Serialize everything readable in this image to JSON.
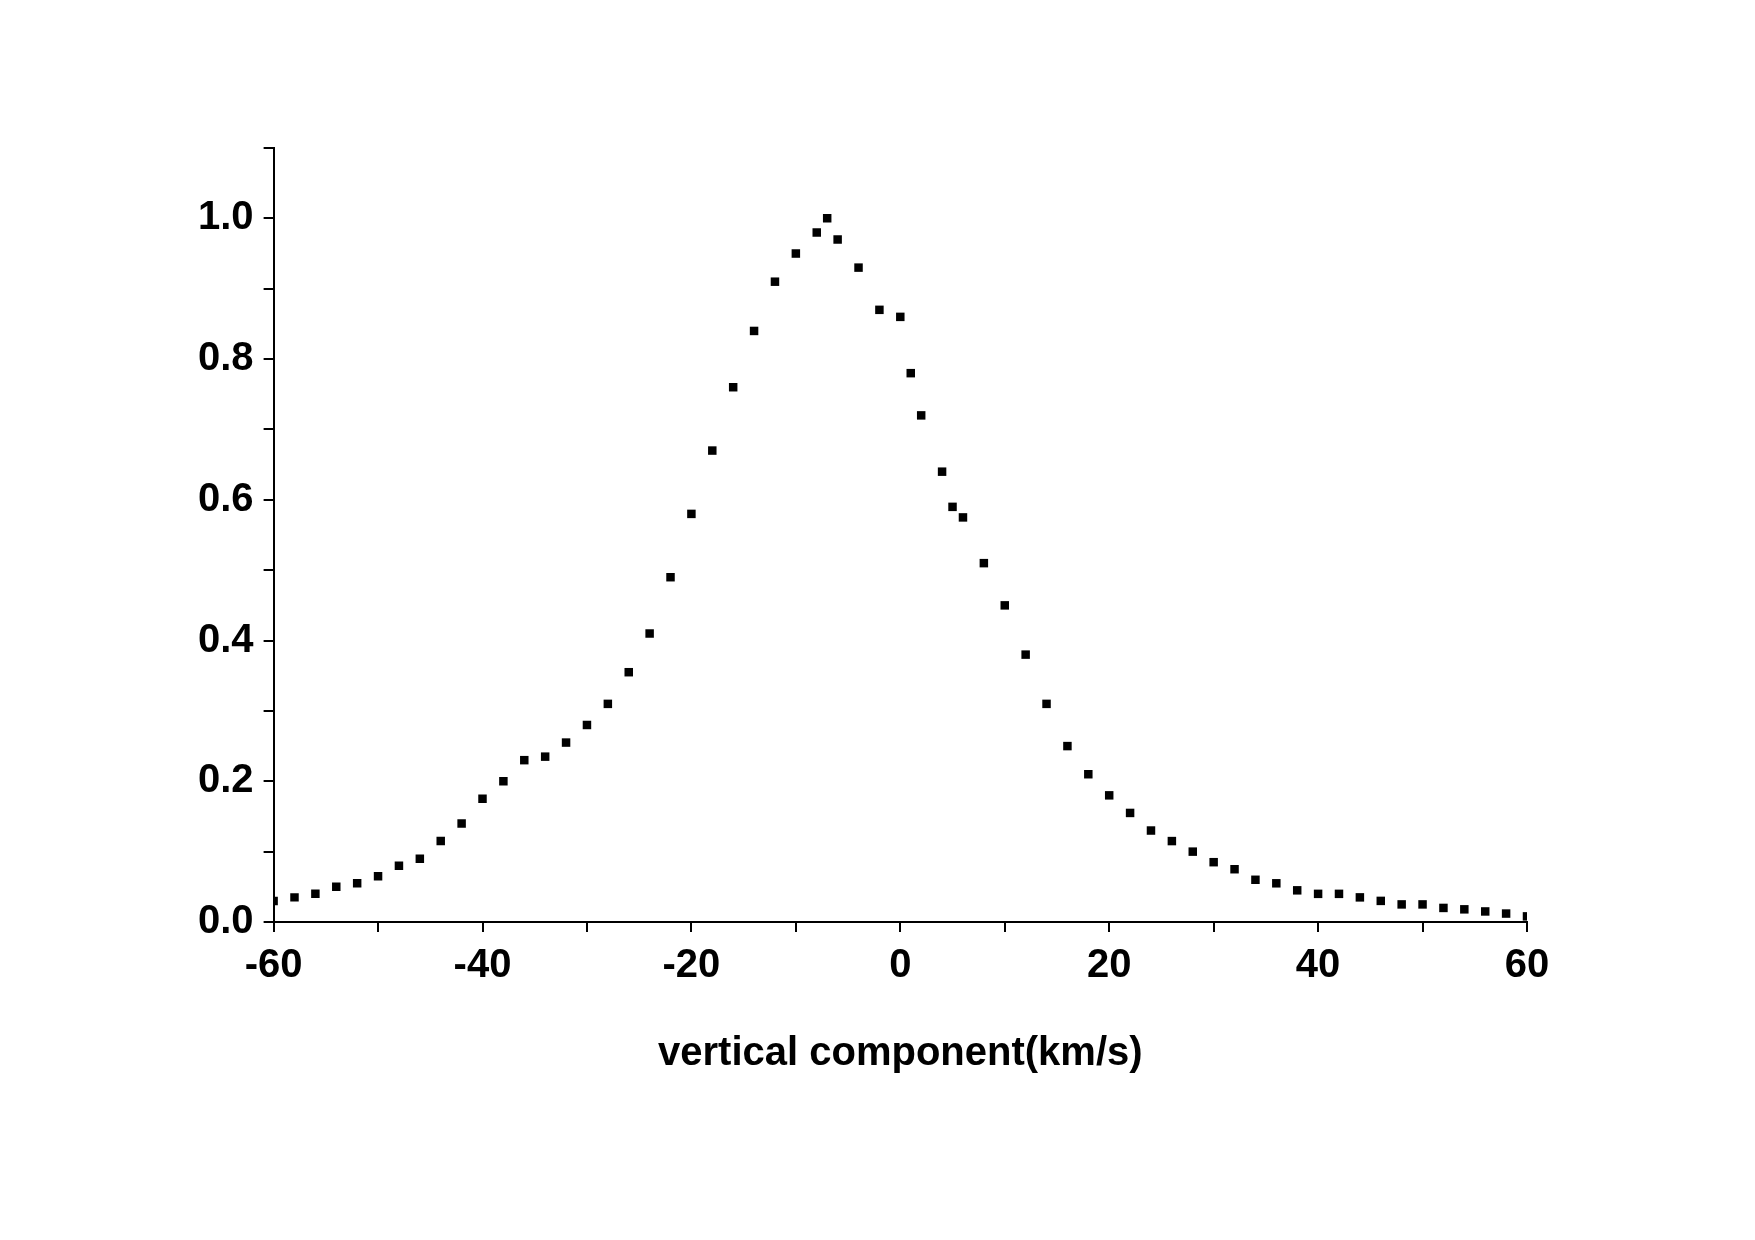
{
  "chart_data": {
    "type": "scatter",
    "xlabel": "vertical component(km/s)",
    "marker": "square",
    "grid": false,
    "legend": false,
    "xlim": [
      -60,
      60
    ],
    "ylim": [
      0,
      1.1
    ],
    "xticks": [
      -60,
      {
        "value": -50,
        "label": null
      },
      -40,
      {
        "value": -30,
        "label": null
      },
      -20,
      {
        "value": -10,
        "label": null
      },
      0,
      {
        "value": 10,
        "label": null
      },
      20,
      {
        "value": 30,
        "label": null
      },
      40,
      {
        "value": 50,
        "label": null
      },
      60
    ],
    "yticks": [
      {
        "value": 0,
        "label": "0.0"
      },
      {
        "value": 0.1,
        "label": null
      },
      {
        "value": 0.2,
        "label": "0.2"
      },
      {
        "value": 0.3,
        "label": null
      },
      {
        "value": 0.4,
        "label": "0.4"
      },
      {
        "value": 0.5,
        "label": null
      },
      {
        "value": 0.6,
        "label": "0.6"
      },
      {
        "value": 0.7,
        "label": null
      },
      {
        "value": 0.8,
        "label": "0.8"
      },
      {
        "value": 0.9,
        "label": null
      },
      {
        "value": 1.0,
        "label": "1.0"
      },
      {
        "value": 1.1,
        "label": null
      }
    ],
    "series": [
      {
        "color": "#000000",
        "x": [
          -60,
          -58,
          -56,
          -54,
          -52,
          -50,
          -48,
          -46,
          -44,
          -42,
          -40,
          -38,
          -36,
          -34,
          -32,
          -30,
          -28,
          -26,
          -24,
          -22,
          -20,
          -18,
          -16,
          -14,
          -12,
          -10,
          -8,
          -7,
          -6,
          -4,
          -2,
          0,
          1,
          2,
          4,
          5,
          6,
          8,
          10,
          12,
          14,
          16,
          18,
          20,
          22,
          24,
          26,
          28,
          30,
          32,
          34,
          36,
          38,
          40,
          42,
          44,
          46,
          48,
          50,
          52,
          54,
          56,
          58,
          60
        ],
        "values": [
          0.03,
          0.035,
          0.04,
          0.05,
          0.055,
          0.065,
          0.08,
          0.09,
          0.115,
          0.14,
          0.175,
          0.2,
          0.23,
          0.235,
          0.255,
          0.28,
          0.31,
          0.355,
          0.41,
          0.49,
          0.58,
          0.67,
          0.76,
          0.84,
          0.91,
          0.95,
          0.98,
          1.0,
          0.97,
          0.93,
          0.87,
          0.86,
          0.78,
          0.72,
          0.64,
          0.59,
          0.575,
          0.51,
          0.45,
          0.38,
          0.31,
          0.25,
          0.21,
          0.18,
          0.155,
          0.13,
          0.115,
          0.1,
          0.085,
          0.075,
          0.06,
          0.055,
          0.045,
          0.04,
          0.04,
          0.035,
          0.03,
          0.025,
          0.025,
          0.02,
          0.018,
          0.015,
          0.012,
          0.008
        ]
      }
    ]
  }
}
